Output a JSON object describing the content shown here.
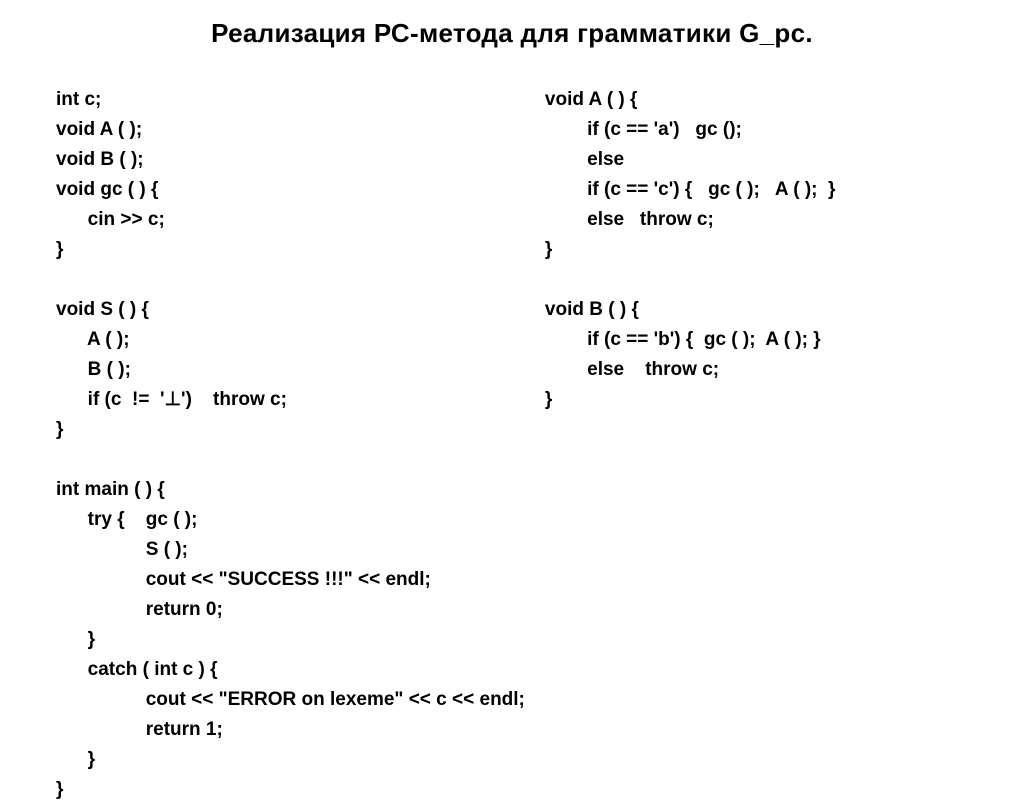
{
  "title": "Реализация РС-метода для грамматики  G_рс.",
  "text_color": "#000000",
  "background_color": "#ffffff",
  "font_size_title": 26,
  "font_size_code": 19,
  "line_height": 30,
  "left_column": [
    "int c;",
    "void A ( );",
    "void B ( );",
    "void gc ( ) {",
    "      cin >> c;",
    "}",
    "",
    "void S ( ) {",
    "      A ( );",
    "      B ( );",
    "      if (c  !=  '⊥')    throw c;",
    "}",
    "",
    "int main ( ) {",
    "      try {    gc ( );",
    "                 S ( );",
    "                 cout << \"SUCCESS !!!\" << endl;",
    "                 return 0;",
    "      }",
    "      catch ( int c ) {",
    "                 cout << \"ERROR on lexeme\" << c << endl;",
    "                 return 1;",
    "      }",
    "}"
  ],
  "right_column": [
    "void A ( ) {",
    "        if (c == 'a')   gc ();",
    "        else",
    "        if (c == 'c') {   gc ( );   A ( );  }",
    "        else   throw c;",
    "}",
    "",
    "void B ( ) {",
    "        if (c == 'b') {  gc ( );  A ( ); }",
    "        else    throw c;",
    "}"
  ]
}
